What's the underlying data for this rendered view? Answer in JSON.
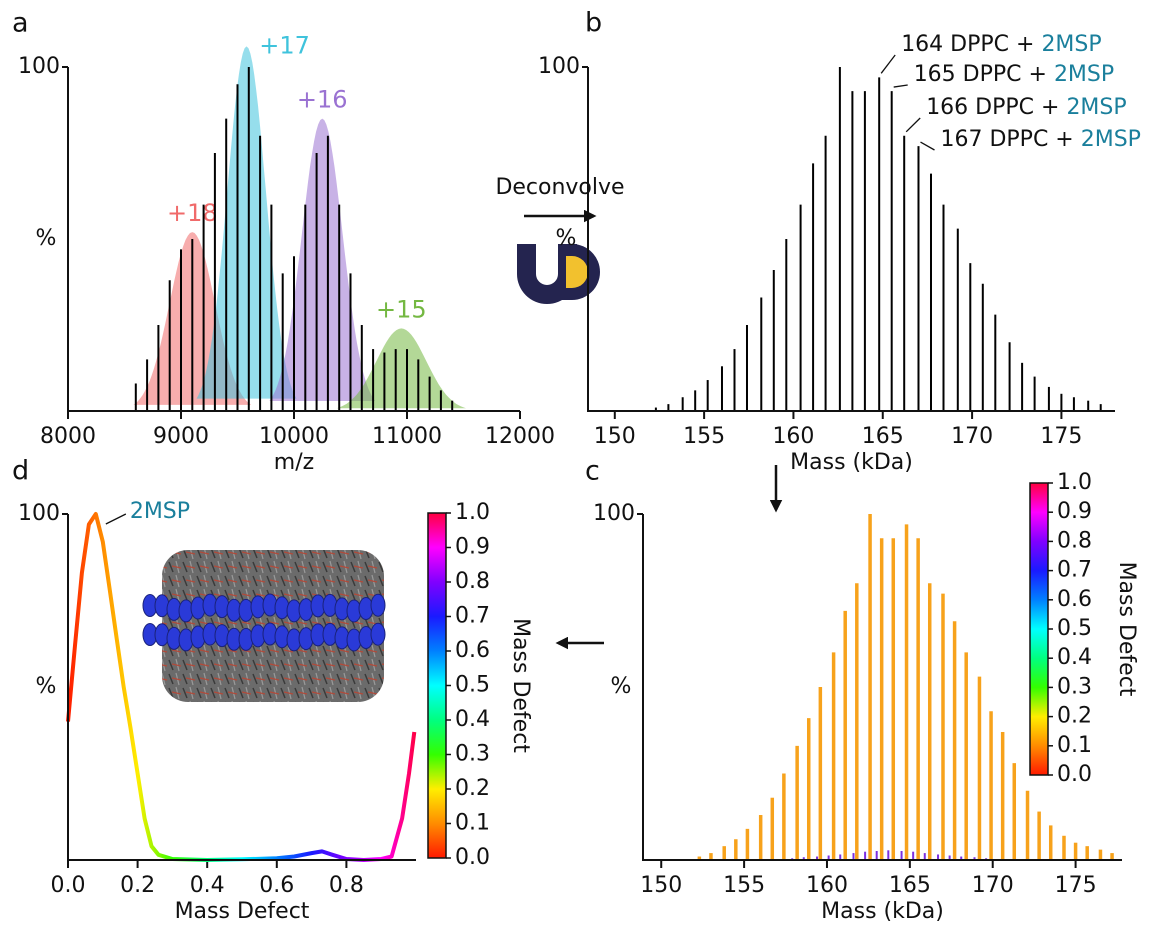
{
  "figure": {
    "arrow_label": "Deconvolve"
  },
  "chart_data": [
    {
      "panel": "a",
      "type": "spectrum",
      "xlabel": "m/z",
      "ylabel": "%",
      "color": "#000000",
      "x": [
        8600,
        8700,
        8800,
        8900,
        9000,
        9100,
        9200,
        9300,
        9400,
        9500,
        9600,
        9700,
        9800,
        9900,
        10000,
        10100,
        10200,
        10300,
        10400,
        10500,
        10600,
        10700,
        10800,
        10900,
        11000,
        11100,
        11200,
        11300,
        11400
      ],
      "values": [
        8,
        15,
        25,
        38,
        47,
        50,
        60,
        75,
        85,
        95,
        100,
        80,
        60,
        40,
        45,
        60,
        75,
        80,
        60,
        40,
        25,
        18,
        17,
        18,
        18,
        15,
        10,
        6,
        3
      ],
      "xlim": [
        8000,
        12000
      ],
      "xticks": [
        8000,
        9000,
        10000,
        11000,
        12000
      ],
      "ylim": [
        0,
        100
      ],
      "yticks": [
        100
      ],
      "envelopes": [
        {
          "name": "+18",
          "color": "#f06a6a",
          "center": 9100,
          "height": 52,
          "width": 200
        },
        {
          "name": "+17",
          "color": "#3fc3dc",
          "center": 9580,
          "height": 106,
          "width": 170
        },
        {
          "name": "+16",
          "color": "#9a72d2",
          "center": 10250,
          "height": 85,
          "width": 180
        },
        {
          "name": "+15",
          "color": "#74b842",
          "center": 10950,
          "height": 24,
          "width": 220
        }
      ]
    },
    {
      "panel": "b",
      "type": "spectrum",
      "xlabel": "Mass (kDa)",
      "ylabel": "%",
      "color": "#000000",
      "x": [
        152.3,
        153.0,
        153.8,
        154.5,
        155.2,
        156.0,
        156.7,
        157.4,
        158.2,
        158.9,
        159.6,
        160.4,
        161.1,
        161.8,
        162.6,
        163.3,
        164.0,
        164.8,
        165.5,
        166.2,
        167.0,
        167.7,
        168.4,
        169.2,
        169.9,
        170.6,
        171.3,
        172.1,
        172.8,
        173.5,
        174.3,
        175.0,
        175.7,
        176.5,
        177.2
      ],
      "values": [
        1,
        2,
        4,
        6,
        9,
        13,
        18,
        25,
        33,
        41,
        50,
        60,
        72,
        80,
        100,
        93,
        93,
        97,
        93,
        80,
        77,
        69,
        60,
        53,
        43,
        37,
        28,
        20,
        14,
        10,
        7,
        5,
        4,
        3,
        2
      ],
      "xlim": [
        148.5,
        178
      ],
      "xticks": [
        150,
        155,
        160,
        165,
        170,
        175
      ],
      "ylim": [
        0,
        100
      ],
      "yticks": [
        100
      ],
      "highlight_color": "#1a7f9c",
      "annotations": [
        {
          "text": "164 DPPC + ",
          "highlight": "2MSP"
        },
        {
          "text": "165 DPPC + ",
          "highlight": "2MSP"
        },
        {
          "text": "166 DPPC + ",
          "highlight": "2MSP"
        },
        {
          "text": "167 DPPC + ",
          "highlight": "2MSP"
        }
      ]
    },
    {
      "panel": "c",
      "type": "spectrum",
      "xlabel": "Mass (kDa)",
      "ylabel": "%",
      "series": [
        {
          "color": "#f7a21b",
          "x": [
            152.3,
            153.0,
            153.8,
            154.5,
            155.2,
            156.0,
            156.7,
            157.4,
            158.2,
            158.9,
            159.6,
            160.4,
            161.1,
            161.8,
            162.6,
            163.3,
            164.0,
            164.8,
            165.5,
            166.2,
            167.0,
            167.7,
            168.4,
            169.2,
            169.9,
            170.6,
            171.3,
            172.1,
            172.8,
            173.5,
            174.3,
            175.0,
            175.7,
            176.5,
            177.2
          ],
          "values": [
            1,
            2,
            4,
            6,
            9,
            13,
            18,
            25,
            33,
            41,
            50,
            60,
            72,
            80,
            100,
            93,
            93,
            97,
            93,
            80,
            77,
            69,
            60,
            53,
            43,
            37,
            28,
            20,
            14,
            10,
            7,
            5,
            4,
            3,
            2
          ]
        },
        {
          "color": "#7b2fe0",
          "x": [
            157.9,
            158.6,
            159.4,
            160.1,
            160.8,
            161.6,
            162.3,
            163.0,
            163.7,
            164.5,
            165.2,
            165.9,
            166.7,
            167.4,
            168.1,
            168.9,
            169.6
          ],
          "values": [
            0.5,
            0.8,
            1,
            1.3,
            1.6,
            2,
            2.4,
            2.6,
            2.8,
            2.6,
            2.4,
            2,
            1.6,
            1.3,
            1,
            0.8,
            0.5
          ]
        }
      ],
      "xlim": [
        148.9,
        177.8
      ],
      "xticks": [
        150,
        155,
        160,
        165,
        170,
        175
      ],
      "ylim": [
        0,
        100
      ],
      "yticks": [
        100
      ],
      "colorbar": {
        "label": "Mass Defect",
        "lim": [
          0,
          1
        ],
        "colors": [
          "#ff1a00",
          "#ff8c00",
          "#ffee00",
          "#33ff00",
          "#00ff80",
          "#00ffff",
          "#0080ff",
          "#1a1aff",
          "#8000ff",
          "#ff00ff",
          "#ff0040"
        ],
        "ticks": [
          {
            "value": 0,
            "label": "0.0"
          },
          {
            "value": 0.1,
            "label": "0.1"
          },
          {
            "value": 0.2,
            "label": "0.2"
          },
          {
            "value": 0.3,
            "label": "0.3"
          },
          {
            "value": 0.4,
            "label": "0.4"
          },
          {
            "value": 0.5,
            "label": "0.5"
          },
          {
            "value": 0.6,
            "label": "0.6"
          },
          {
            "value": 0.7,
            "label": "0.7"
          },
          {
            "value": 0.8,
            "label": "0.8"
          },
          {
            "value": 0.9,
            "label": "0.9"
          },
          {
            "value": 1,
            "label": "1.0"
          }
        ]
      }
    },
    {
      "panel": "d",
      "type": "line",
      "xlabel": "Mass Defect",
      "ylabel": "%",
      "x": [
        0,
        0.02,
        0.04,
        0.06,
        0.08,
        0.1,
        0.12,
        0.14,
        0.16,
        0.18,
        0.2,
        0.22,
        0.24,
        0.26,
        0.3,
        0.4,
        0.5,
        0.6,
        0.65,
        0.7,
        0.73,
        0.76,
        0.8,
        0.85,
        0.9,
        0.93,
        0.96,
        0.98,
        0.995
      ],
      "values": [
        40,
        62,
        83,
        97,
        100,
        92,
        78,
        64,
        50,
        38,
        25,
        12,
        4,
        1.5,
        0.3,
        0,
        0.2,
        0.5,
        1,
        2,
        2.5,
        1.5,
        0.3,
        0,
        0.3,
        1,
        12,
        25,
        37
      ],
      "xlim": [
        0,
        1
      ],
      "xticks": [
        {
          "value": 0,
          "label": "0.0"
        },
        {
          "value": 0.2,
          "label": "0.2"
        },
        {
          "value": 0.4,
          "label": "0.4"
        },
        {
          "value": 0.6,
          "label": "0.6"
        },
        {
          "value": 0.8,
          "label": "0.8"
        }
      ],
      "ylim": [
        0,
        100
      ],
      "yticks": [
        100
      ],
      "annotation": "2MSP",
      "annotation_color": "#1a7f9c",
      "colorbar": {
        "label": "Mass Defect",
        "lim": [
          0,
          1
        ],
        "colors": [
          "#ff1a00",
          "#ff8c00",
          "#ffee00",
          "#33ff00",
          "#00ff80",
          "#00ffff",
          "#0080ff",
          "#1a1aff",
          "#8000ff",
          "#ff00ff",
          "#ff0040"
        ],
        "ticks": [
          {
            "value": 0,
            "label": "0.0"
          },
          {
            "value": 0.1,
            "label": "0.1"
          },
          {
            "value": 0.2,
            "label": "0.2"
          },
          {
            "value": 0.3,
            "label": "0.3"
          },
          {
            "value": 0.4,
            "label": "0.4"
          },
          {
            "value": 0.5,
            "label": "0.5"
          },
          {
            "value": 0.6,
            "label": "0.6"
          },
          {
            "value": 0.7,
            "label": "0.7"
          },
          {
            "value": 0.8,
            "label": "0.8"
          },
          {
            "value": 0.9,
            "label": "0.9"
          },
          {
            "value": 1,
            "label": "1.0"
          }
        ]
      }
    }
  ]
}
